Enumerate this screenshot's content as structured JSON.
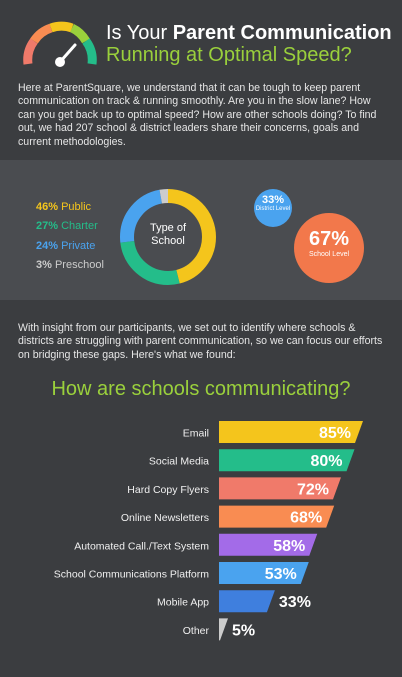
{
  "header": {
    "title_prefix": "Is Your ",
    "title_bold": "Parent Communication",
    "title_line2": "Running at Optimal Speed?",
    "intro": "Here at ParentSquare, we understand that it can be tough to keep parent communication on track & running smoothly. Are you in the slow lane? How can you get back up to optimal speed? How are other schools doing? To find out, we had 207 school & district leaders share their concerns, goals and current methodologies."
  },
  "colors": {
    "green_accent": "#9ad03c",
    "yellow": "#f4c51c",
    "teal": "#24bd8a",
    "salmon": "#f07a6a",
    "orange": "#f98c52",
    "purple": "#a36be8",
    "blue": "#4aa3ef",
    "gray": "#cccccc"
  },
  "school_types": {
    "center_label": "Type of School",
    "items": [
      {
        "pct": "46%",
        "label": "Public",
        "value": 46,
        "color": "#f4c51c"
      },
      {
        "pct": "27%",
        "label": "Charter",
        "value": 27,
        "color": "#24bd8a"
      },
      {
        "pct": "24%",
        "label": "Private",
        "value": 24,
        "color": "#4aa3ef"
      },
      {
        "pct": "3%",
        "label": "Preschool",
        "value": 3,
        "color": "#cccccc"
      }
    ]
  },
  "levels": {
    "district": {
      "pct": "33%",
      "label": "District Level"
    },
    "school": {
      "pct": "67%",
      "label": "School Level"
    }
  },
  "insight": "With insight from our participants, we set out to identify where schools & districts are struggling with parent communication, so we can focus our efforts on bridging these gaps. Here's what we found:",
  "chart_data": {
    "type": "bar",
    "orientation": "horizontal",
    "title": "How are schools communicating?",
    "categories": [
      "Email",
      "Social Media",
      "Hard Copy Flyers",
      "Online Newsletters",
      "Automated Call./Text System",
      "School Communications Platform",
      "Mobile App",
      "Other"
    ],
    "values": [
      85,
      80,
      72,
      68,
      58,
      53,
      33,
      5
    ],
    "labels": [
      "85%",
      "80%",
      "72%",
      "68%",
      "58%",
      "53%",
      "33%",
      "5%"
    ],
    "colors": [
      "#f4c51c",
      "#24bd8a",
      "#f07a6a",
      "#f98c52",
      "#a36be8",
      "#4aa3ef",
      "#3f7fde",
      "#cccccc"
    ],
    "xlim": [
      0,
      85
    ],
    "grid": false
  }
}
